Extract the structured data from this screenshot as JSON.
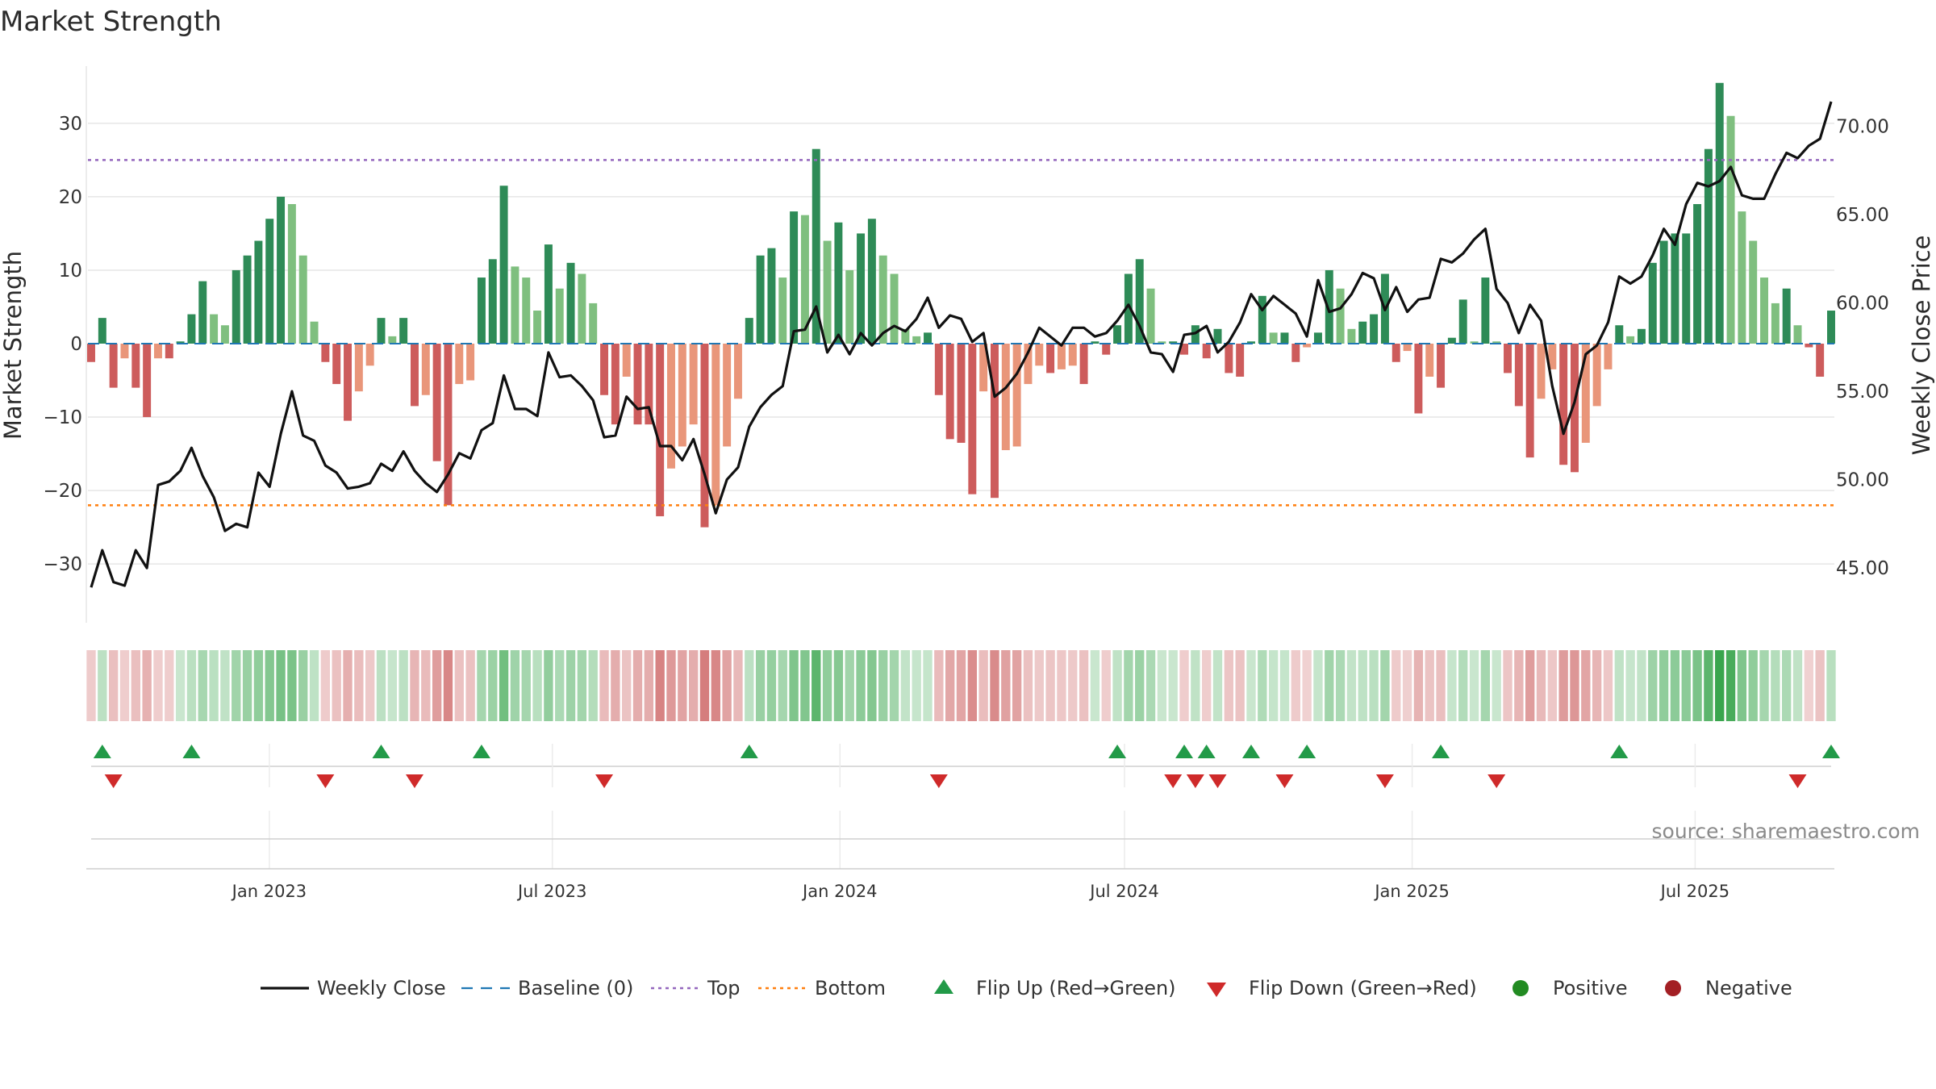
{
  "title": "Market Strength",
  "source_text": "source: sharemaestro.com",
  "colors": {
    "pos_dark": "#2e8b57",
    "pos_light": "#7fbf7f",
    "neg_dark": "#cd5c5c",
    "neg_light": "#e9967a",
    "close_line": "#111111",
    "baseline": "#1f77b4",
    "top_line": "#9467bd",
    "bottom_line": "#ff7f0e",
    "flip_up": "#229a48",
    "flip_down": "#cf2a2a",
    "positive": "#228b22",
    "negative": "#a31f24"
  },
  "legend": [
    {
      "label": "Weekly Close",
      "symbol": "line",
      "color": "#111111"
    },
    {
      "label": "Baseline (0)",
      "symbol": "dash",
      "color": "#1f77b4"
    },
    {
      "label": "Top",
      "symbol": "dot",
      "color": "#9467bd"
    },
    {
      "label": "Bottom",
      "symbol": "dot",
      "color": "#ff7f0e"
    },
    {
      "label": "Flip Up (Red→Green)",
      "symbol": "tri-up",
      "color": "#229a48"
    },
    {
      "label": "Flip Down (Green→Red)",
      "symbol": "tri-down",
      "color": "#cf2a2a"
    },
    {
      "label": "Positive",
      "symbol": "circle",
      "color": "#228b22"
    },
    {
      "label": "Negative",
      "symbol": "circle",
      "color": "#a31f24"
    }
  ],
  "chart_data": {
    "type": "bar",
    "title": "Market Strength",
    "ylabel": "Market Strength",
    "y2label": "Weekly Close Price",
    "ylim": [
      -38,
      38
    ],
    "y2lim": [
      41.9,
      73.5
    ],
    "yticks": [
      30,
      20,
      10,
      0,
      -10,
      -20,
      -30
    ],
    "ytick_labels": [
      "30",
      "20",
      "10",
      "0",
      "−10",
      "−20",
      "−30"
    ],
    "y2ticks": [
      70,
      65,
      60,
      55,
      50,
      45
    ],
    "y2tick_labels": [
      "70.00",
      "65.00",
      "60.00",
      "55.00",
      "50.00",
      "45.00"
    ],
    "top": 25,
    "bottom": -22,
    "date_range": [
      "2022-09-09",
      "2025-09-26"
    ],
    "xticks": [
      {
        "date": "2023-01-01",
        "label": "Jan 2023"
      },
      {
        "date": "2023-07-01",
        "label": "Jul 2023"
      },
      {
        "date": "2024-01-01",
        "label": "Jan 2024"
      },
      {
        "date": "2024-07-01",
        "label": "Jul 2024"
      },
      {
        "date": "2025-01-01",
        "label": "Jan 2025"
      },
      {
        "date": "2025-07-01",
        "label": "Jul 2025"
      }
    ],
    "series": [
      {
        "name": "Weekly Close",
        "type": "line"
      },
      {
        "name": "Baseline (0)",
        "type": "hline"
      },
      {
        "name": "Top",
        "type": "hline"
      },
      {
        "name": "Bottom",
        "type": "hline"
      },
      {
        "name": "Flip Up (Red→Green)",
        "type": "marker"
      },
      {
        "name": "Flip Down (Green→Red)",
        "type": "marker"
      },
      {
        "name": "Positive",
        "type": "marker"
      },
      {
        "name": "Negative",
        "type": "marker"
      }
    ],
    "strength": [
      -2.5,
      3.5,
      -6,
      -2,
      -6,
      -10,
      -2,
      -2,
      0.3,
      4,
      8.5,
      4,
      2.5,
      10,
      12,
      14,
      17,
      20,
      19,
      12,
      3,
      -2.5,
      -5.5,
      -10.5,
      -6.5,
      -3,
      3.5,
      1,
      3.5,
      -8.5,
      -7,
      -16,
      -22,
      -5.5,
      -5,
      9,
      11.5,
      21.5,
      10.5,
      9,
      4.5,
      13.5,
      7.5,
      11,
      9.5,
      5.5,
      -7,
      -11,
      -4.5,
      -11,
      -11,
      -23.5,
      -17,
      -14,
      -11,
      -25,
      -22,
      -14,
      -7.5,
      3.5,
      12,
      13,
      9,
      18,
      17.5,
      26.5,
      14,
      16.5,
      10,
      15,
      17,
      12,
      9.5,
      2,
      1,
      1.5,
      -7,
      -13,
      -13.5,
      -20.5,
      -6.5,
      -21,
      -14.5,
      -14,
      -5.5,
      -3,
      -4,
      -3.5,
      -3,
      -5.5,
      0.3,
      -1.5,
      2.5,
      9.5,
      11.5,
      7.5,
      0.3,
      0.3,
      -1.5,
      2.5,
      -2,
      2,
      -4,
      -4.5,
      0.3,
      6.5,
      1.5,
      1.5,
      -2.5,
      -0.5,
      1.5,
      10,
      7.5,
      2,
      3,
      4,
      9.5,
      -2.5,
      -1,
      -9.5,
      -4.5,
      -6,
      0.8,
      6,
      0.3,
      9,
      0.3,
      -4,
      -8.5,
      -15.5,
      -7.5,
      -3.5,
      -16.5,
      -17.5,
      -13.5,
      -8.5,
      -3.5,
      2.5,
      1,
      2,
      11,
      14,
      15,
      15,
      19,
      26.5,
      35.5,
      31,
      18,
      14,
      9,
      5.5,
      7.5,
      2.5,
      -0.5,
      -4.5,
      4.5
    ],
    "close": [
      43.9,
      46.0,
      44.2,
      44.0,
      46.0,
      45.0,
      49.7,
      49.9,
      50.5,
      51.8,
      50.2,
      49.0,
      47.1,
      47.5,
      47.3,
      50.4,
      49.6,
      52.6,
      55.0,
      52.5,
      52.2,
      50.8,
      50.4,
      49.5,
      49.6,
      49.8,
      50.9,
      50.5,
      51.6,
      50.5,
      49.8,
      49.3,
      50.3,
      51.5,
      51.2,
      52.8,
      53.2,
      55.9,
      54.0,
      54.0,
      53.6,
      57.2,
      55.8,
      55.9,
      55.3,
      54.5,
      52.4,
      52.5,
      54.7,
      54.0,
      54.1,
      51.9,
      51.9,
      51.1,
      52.3,
      50.3,
      48.1,
      50.0,
      50.7,
      53.0,
      54.1,
      54.8,
      55.3,
      58.4,
      58.5,
      59.8,
      57.2,
      58.2,
      57.1,
      58.3,
      57.6,
      58.3,
      58.7,
      58.4,
      59.1,
      60.3,
      58.6,
      59.3,
      59.1,
      57.8,
      58.3,
      54.7,
      55.2,
      56.0,
      57.2,
      58.6,
      58.1,
      57.6,
      58.6,
      58.6,
      58.1,
      58.3,
      59.0,
      59.9,
      58.7,
      57.2,
      57.1,
      56.1,
      58.2,
      58.3,
      58.7,
      57.2,
      57.8,
      58.9,
      60.5,
      59.6,
      60.4,
      59.9,
      59.4,
      58.1,
      61.3,
      59.5,
      59.7,
      60.5,
      61.7,
      61.4,
      59.6,
      60.9,
      59.5,
      60.2,
      60.3,
      62.5,
      62.3,
      62.8,
      63.6,
      64.2,
      60.8,
      60.0,
      58.3,
      59.9,
      59.0,
      55.3,
      52.6,
      54.4,
      57.1,
      57.6,
      58.9,
      61.5,
      61.1,
      61.5,
      62.7,
      64.2,
      63.3,
      65.6,
      66.8,
      66.6,
      66.9,
      67.7,
      66.1,
      65.9,
      65.9,
      67.3,
      68.5,
      68.2,
      68.9,
      69.3,
      71.4
    ],
    "flip_up": [
      1,
      9,
      26,
      35,
      59,
      92,
      98,
      100,
      104,
      109,
      121,
      137,
      156
    ],
    "flip_down": [
      2,
      21,
      29,
      46,
      76,
      97,
      99,
      101,
      107,
      116,
      126,
      153
    ]
  }
}
